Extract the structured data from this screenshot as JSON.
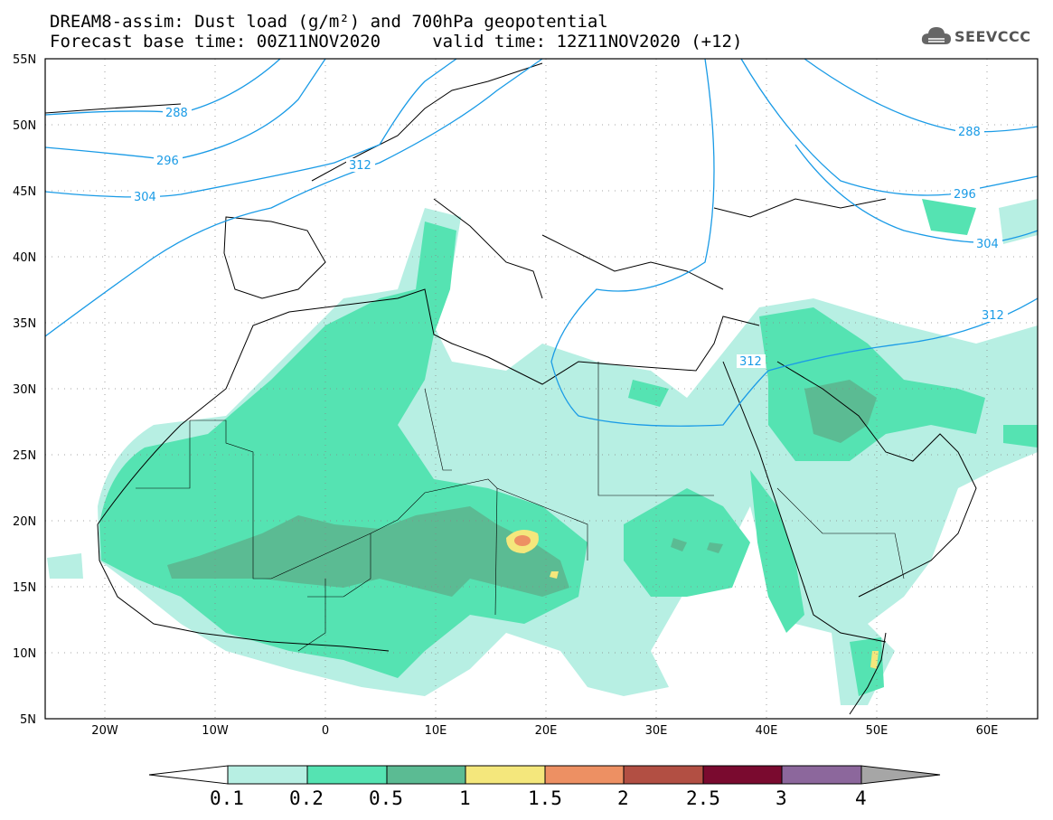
{
  "title": {
    "line1": "DREAM8-assim: Dust load (g/m²) and 700hPa geopotential",
    "line2": "Forecast base time: 00Z11NOV2020     valid time: 12Z11NOV2020 (+12)"
  },
  "logo": {
    "text": "SEEVCCC",
    "icon": "cloud-icon"
  },
  "map": {
    "lat_labels": [
      "55N",
      "50N",
      "45N",
      "40N",
      "35N",
      "30N",
      "25N",
      "20N",
      "15N",
      "10N",
      "5N"
    ],
    "lon_labels": [
      "20W",
      "10W",
      "0",
      "10E",
      "20E",
      "30E",
      "40E",
      "50E",
      "60E"
    ],
    "contour_labels": [
      "288",
      "296",
      "304",
      "312",
      "312",
      "312",
      "288",
      "296",
      "304"
    ],
    "contour_color": "#1a9be6"
  },
  "colorbar": {
    "labels": [
      "0.1",
      "0.2",
      "0.5",
      "1",
      "1.5",
      "2",
      "2.5",
      "3",
      "4"
    ],
    "colors": [
      "#b7efe3",
      "#55e3b2",
      "#5bbb93",
      "#f4e77c",
      "#ed9063",
      "#b24f43",
      "#7a0a2f",
      "#8c679c",
      "#a6a6a6"
    ]
  }
}
